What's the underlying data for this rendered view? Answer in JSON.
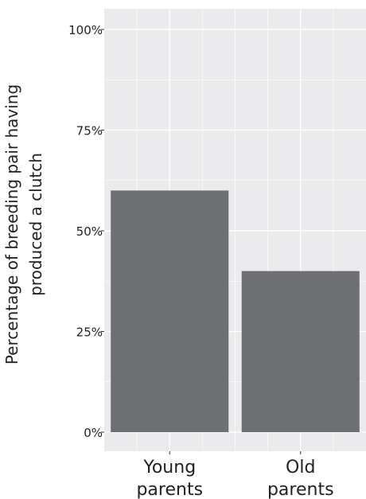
{
  "chart_data": {
    "type": "bar",
    "categories": [
      {
        "line1": "Young",
        "line2": "parents"
      },
      {
        "line1": "Old",
        "line2": "parents"
      }
    ],
    "values": [
      60,
      40
    ],
    "ylabel_line1": "Percentage of breeding pair having",
    "ylabel_line2": "produced a clutch",
    "ylim": [
      0,
      100
    ],
    "yticks": [
      {
        "value": 0,
        "label": "0%"
      },
      {
        "value": 25,
        "label": "25%"
      },
      {
        "value": 50,
        "label": "50%"
      },
      {
        "value": 75,
        "label": "75%"
      },
      {
        "value": 100,
        "label": "100%"
      }
    ],
    "grid": true,
    "bar_color": "#6e6f72",
    "panel_color": "#ebebed",
    "grid_color": "#ffffff"
  }
}
